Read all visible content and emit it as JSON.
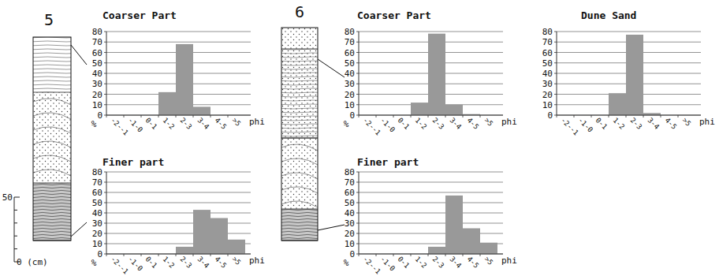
{
  "columns": [
    {
      "label": "5"
    },
    {
      "label": "6"
    }
  ],
  "scale": {
    "range": [
      0,
      50
    ],
    "ticks": [
      {
        "value": 50,
        "label": "50"
      },
      {
        "value": 0,
        "label": "0 (cm)"
      }
    ],
    "minor_ticks": [
      10,
      20,
      30,
      40
    ]
  },
  "chart_data": [
    {
      "type": "bar",
      "title": "Coarser Part",
      "categories": [
        "-2--1",
        "-1-0",
        "0-1",
        "1-2",
        "2-3",
        "3-4",
        "4-5",
        ">5"
      ],
      "values": [
        0,
        0,
        0,
        22,
        68,
        8,
        0,
        0
      ],
      "color": "#999999",
      "ylim": [
        0,
        80
      ],
      "yticks": [
        0,
        10,
        20,
        30,
        40,
        50,
        60,
        70,
        80
      ],
      "grid": true,
      "xlabel": "phi",
      "ylabel": "%"
    },
    {
      "type": "bar",
      "title": "Finer part",
      "categories": [
        "-2--1",
        "-1-0",
        "0-1",
        "1-2",
        "2-3",
        "3-4",
        "4-5",
        ">5"
      ],
      "values": [
        0,
        0,
        0,
        0,
        7,
        43,
        35,
        14
      ],
      "color": "#999999",
      "ylim": [
        0,
        80
      ],
      "yticks": [
        0,
        10,
        20,
        30,
        40,
        50,
        60,
        70,
        80
      ],
      "grid": true,
      "xlabel": "phi",
      "ylabel": "%"
    },
    {
      "type": "bar",
      "title": "Coarser Part",
      "categories": [
        "-2--1",
        "-1-0",
        "0-1",
        "1-2",
        "2-3",
        "3-4",
        "4-5",
        ">5"
      ],
      "values": [
        0,
        0,
        0,
        12,
        78,
        10,
        1,
        0
      ],
      "color": "#999999",
      "ylim": [
        0,
        80
      ],
      "yticks": [
        0,
        10,
        20,
        30,
        40,
        50,
        60,
        70,
        80
      ],
      "grid": true,
      "xlabel": "phi",
      "ylabel": "%"
    },
    {
      "type": "bar",
      "title": "Finer part",
      "categories": [
        "-2--1",
        "-1-0",
        "0-1",
        "1-2",
        "2-3",
        "3-4",
        "4-5",
        ">5"
      ],
      "values": [
        0,
        0,
        0,
        0,
        7,
        57,
        25,
        11
      ],
      "color": "#999999",
      "ylim": [
        0,
        80
      ],
      "yticks": [
        0,
        10,
        20,
        30,
        40,
        50,
        60,
        70,
        80
      ],
      "grid": true,
      "xlabel": "phi",
      "ylabel": "%"
    },
    {
      "type": "bar",
      "title": "Dune Sand",
      "categories": [
        "-2--1",
        "-1-0",
        "0-1",
        "1-2",
        "2-3",
        "3-4",
        "4-5",
        ">5"
      ],
      "values": [
        0,
        0,
        0,
        21,
        77,
        2,
        0,
        0
      ],
      "color": "#999999",
      "ylim": [
        0,
        80
      ],
      "yticks": [
        0,
        10,
        20,
        30,
        40,
        50,
        60,
        70,
        80
      ],
      "grid": true,
      "xlabel": "phi"
    }
  ]
}
